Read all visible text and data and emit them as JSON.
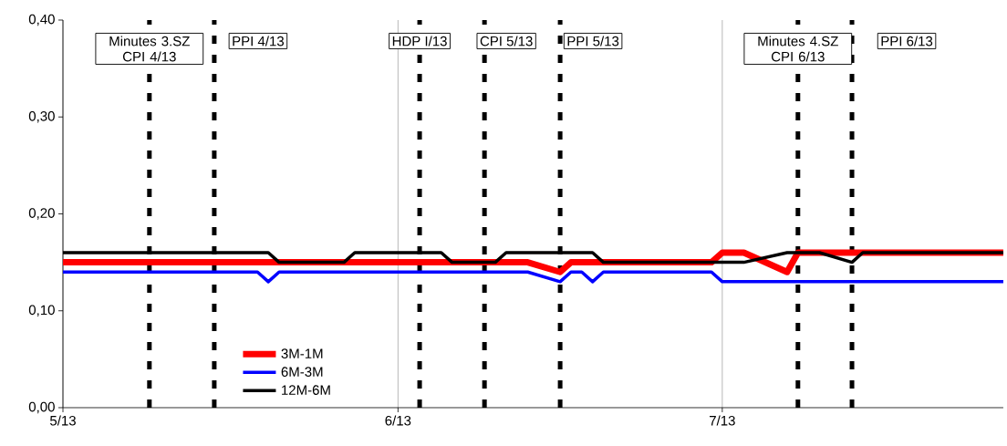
{
  "chart_data": {
    "type": "line",
    "xlim": [
      "2013-05-01",
      "2013-07-27"
    ],
    "xticks": [
      {
        "value": "2013-05-01",
        "label": "5/13"
      },
      {
        "value": "2013-06-01",
        "label": "6/13"
      },
      {
        "value": "2013-07-01",
        "label": "7/13"
      }
    ],
    "ylim": [
      0,
      0.4
    ],
    "yticks": [
      {
        "value": 0,
        "label": "0,00"
      },
      {
        "value": 0.1,
        "label": "0,10"
      },
      {
        "value": 0.2,
        "label": "0,20"
      },
      {
        "value": 0.3,
        "label": "0,30"
      },
      {
        "value": 0.4,
        "label": "0,40"
      }
    ],
    "grid": "x",
    "legend": "bottom left",
    "series": [
      {
        "name": "3M-1M",
        "color": "#ff0000",
        "x": [
          "2013-05-01",
          "2013-06-13",
          "2013-06-16",
          "2013-06-17",
          "2013-06-30",
          "2013-07-01",
          "2013-07-03",
          "2013-07-07",
          "2013-07-08",
          "2013-07-27"
        ],
        "values": [
          0.15,
          0.15,
          0.14,
          0.15,
          0.15,
          0.16,
          0.16,
          0.14,
          0.16,
          0.16
        ]
      },
      {
        "name": "6M-3M",
        "color": "#0000ff",
        "x": [
          "2013-05-01",
          "2013-05-19",
          "2013-05-20",
          "2013-05-21",
          "2013-06-13",
          "2013-06-16",
          "2013-06-17",
          "2013-06-18",
          "2013-06-19",
          "2013-06-20",
          "2013-06-30",
          "2013-07-01",
          "2013-07-27"
        ],
        "values": [
          0.14,
          0.14,
          0.13,
          0.14,
          0.14,
          0.13,
          0.14,
          0.14,
          0.13,
          0.14,
          0.14,
          0.13,
          0.13
        ]
      },
      {
        "name": "12M-6M",
        "color": "#000000",
        "x": [
          "2013-05-01",
          "2013-05-20",
          "2013-05-21",
          "2013-05-27",
          "2013-05-28",
          "2013-06-05",
          "2013-06-06",
          "2013-06-10",
          "2013-06-11",
          "2013-06-19",
          "2013-06-20",
          "2013-07-03",
          "2013-07-07",
          "2013-07-10",
          "2013-07-13",
          "2013-07-14",
          "2013-07-27"
        ],
        "values": [
          0.16,
          0.16,
          0.15,
          0.15,
          0.16,
          0.16,
          0.15,
          0.15,
          0.16,
          0.16,
          0.15,
          0.15,
          0.16,
          0.16,
          0.15,
          0.16,
          0.16
        ]
      }
    ],
    "ref_lines": [
      {
        "axis": "x",
        "value": "2013-05-09",
        "label": "Minutes 3.SZ CPI 4/13",
        "color": "#000000",
        "line_style": "dashed"
      },
      {
        "axis": "x",
        "value": "2013-05-15",
        "label": "PPI 4/13",
        "color": "#000000",
        "line_style": "dashed"
      },
      {
        "axis": "x",
        "value": "2013-06-03",
        "label": "HDP I/13",
        "color": "#000000",
        "line_style": "dashed"
      },
      {
        "axis": "x",
        "value": "2013-06-09",
        "label": "CPI 5/13",
        "color": "#000000",
        "line_style": "dashed"
      },
      {
        "axis": "x",
        "value": "2013-06-16",
        "label": "PPI 5/13",
        "color": "#000000",
        "line_style": "dashed"
      },
      {
        "axis": "x",
        "value": "2013-07-08",
        "label": "Minutes 4.SZ CPI 6/13",
        "color": "#000000",
        "line_style": "dashed"
      },
      {
        "axis": "x",
        "value": "2013-07-13",
        "label": "PPI 6/13",
        "color": "#000000",
        "line_style": "dashed"
      }
    ]
  }
}
